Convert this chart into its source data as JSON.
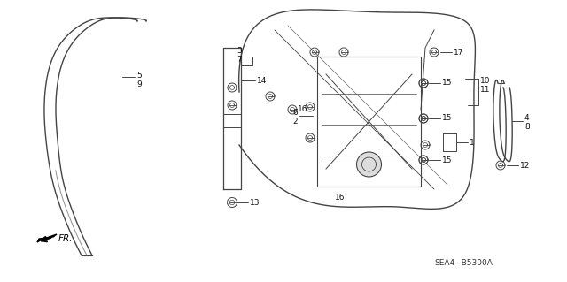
{
  "bg_color": "#ffffff",
  "line_color": "#444444",
  "text_color": "#111111",
  "diagram_code": "SEA4−B5300A",
  "figsize": [
    6.4,
    3.19
  ],
  "dpi": 100
}
